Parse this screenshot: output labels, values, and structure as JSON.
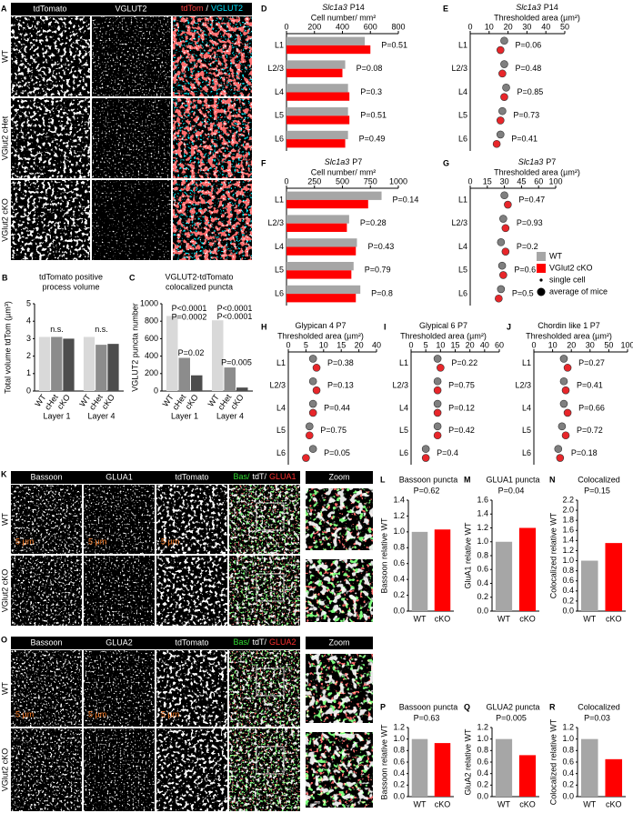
{
  "colors": {
    "wt": "#a6a6a6",
    "cko": "#ff0000",
    "wt_dot": "#7f7f7f",
    "cko_dot": "#e8262a"
  },
  "panel_a": {
    "letter": "A",
    "columns": [
      "tdTomato",
      "VGLUT2"
    ],
    "merge": [
      {
        "text": "tdTom",
        "color": "#ff4040"
      },
      {
        "text": "/",
        "color": "#ffffff"
      },
      {
        "text": "VGLUT2",
        "color": "#00e5ff"
      }
    ],
    "rows": [
      "WT",
      "VGlut2 cHet",
      "VGlut2 cKO"
    ]
  },
  "panel_b": {
    "letter": "B",
    "title": [
      "tdTomato positive",
      "process volume"
    ],
    "ylabel": "Total volume tdTom (µm³)",
    "categories": [
      "WT",
      "cHet",
      "cKO"
    ],
    "colors": [
      "#d9d9d9",
      "#8c8c8c",
      "#4d4d4d"
    ],
    "groups": [
      {
        "name": "Layer 1",
        "values": [
          3.1,
          3.1,
          3.0
        ]
      },
      {
        "name": "Layer 4",
        "values": [
          3.1,
          2.65,
          2.7
        ]
      }
    ],
    "ylim": [
      0,
      5
    ],
    "yticks": [
      0,
      1,
      2,
      3,
      4,
      5
    ],
    "annotations": [
      "n.s.",
      "n.s."
    ]
  },
  "panel_c": {
    "letter": "C",
    "title": [
      "VGLUT2-tdTomato",
      "colocalized puncta"
    ],
    "ylabel": "VGLUT2 puncta number",
    "categories": [
      "WT",
      "cHet",
      "cKO"
    ],
    "colors": [
      "#d9d9d9",
      "#8c8c8c",
      "#4d4d4d"
    ],
    "groups": [
      {
        "name": "Layer 1",
        "values": [
          860,
          380,
          180
        ]
      },
      {
        "name": "Layer 4",
        "values": [
          810,
          270,
          40
        ]
      }
    ],
    "ylim": [
      0,
      1000
    ],
    "yticks": [
      0,
      200,
      400,
      600,
      800,
      1000
    ],
    "annotations": [
      "P<0.0001",
      "P=0.0002",
      "P=0.02",
      "P<0.0001",
      "P<0.0001",
      "P=0.005"
    ]
  },
  "panel_d": {
    "letter": "D",
    "title_italic": "Slc1a3",
    "title": "P14",
    "subtitle": "Cell number/ mm²",
    "categories": [
      "L1",
      "L2/3",
      "L4",
      "L5",
      "L6"
    ],
    "wt": [
      560,
      420,
      440,
      440,
      440
    ],
    "cko": [
      600,
      400,
      450,
      450,
      420
    ],
    "xlim": [
      0,
      800
    ],
    "xticks": [
      0,
      200,
      400,
      600,
      800
    ],
    "p_labels": [
      "P=0.51",
      "P=0.08",
      "P=0.3",
      "P=0.51",
      "P=0.49"
    ]
  },
  "panel_e": {
    "letter": "E",
    "title_italic": "Slc1a3",
    "title": "P14",
    "subtitle": "Thresholded area (µm²)",
    "categories": [
      "L1",
      "L2/3",
      "L4",
      "L5",
      "L6"
    ],
    "wt": [
      18,
      18,
      19,
      17,
      16
    ],
    "cko": [
      16,
      17,
      18,
      16,
      14
    ],
    "xticks": [
      0,
      10,
      20,
      30,
      40,
      50
    ],
    "p_labels": [
      "P=0.06",
      "P=0.48",
      "P=0.85",
      "P=0.73",
      "P=0.41"
    ]
  },
  "panel_f": {
    "letter": "F",
    "title_italic": "Slc1a3",
    "title": "P7",
    "subtitle": "Cell number/ mm²",
    "categories": [
      "L1",
      "L2/3",
      "L4",
      "L5",
      "L6"
    ],
    "wt": [
      850,
      560,
      630,
      600,
      660
    ],
    "cko": [
      730,
      540,
      620,
      580,
      620
    ],
    "xlim": [
      0,
      1000
    ],
    "xticks": [
      0,
      250,
      500,
      750,
      1000
    ],
    "p_labels": [
      "P=0.14",
      "P=0.28",
      "P=0.43",
      "P=0.79",
      "P=0.8"
    ]
  },
  "panel_g": {
    "letter": "G",
    "title_italic": "Slc1a3",
    "title": "P7",
    "subtitle": "Thresholded area (µm²)",
    "categories": [
      "L1",
      "L2/3",
      "L4",
      "L5",
      "L6"
    ],
    "wt": [
      30,
      29,
      27,
      28,
      27
    ],
    "cko": [
      33,
      31,
      31,
      29,
      25
    ],
    "xticks": [
      0,
      15,
      30,
      45,
      60,
      100
    ],
    "p_labels": [
      "P=0.47",
      "P=0.93",
      "P=0.2",
      "P=0.6",
      "P=0.5"
    ]
  },
  "legend": {
    "items": [
      {
        "label": "WT",
        "kind": "square",
        "color": "#a6a6a6"
      },
      {
        "label": "VGlut2 cKO",
        "kind": "square",
        "color": "#ff0000"
      },
      {
        "label": "single cell",
        "kind": "small-dot",
        "color": "#000000"
      },
      {
        "label": "average of mice",
        "kind": "big-dot",
        "color": "#000000"
      }
    ]
  },
  "panel_h": {
    "letter": "H",
    "title": "Glypican 4 P7",
    "subtitle": "Thresholded area (µm²)",
    "categories": [
      "L1",
      "L2/3",
      "L4",
      "L5",
      "L6"
    ],
    "wt": [
      7,
      7,
      7,
      6,
      7
    ],
    "cko": [
      8,
      8,
      7,
      6,
      5
    ],
    "xticks": [
      0,
      5,
      10,
      15,
      20,
      40
    ],
    "p_labels": [
      "P=0.38",
      "P=0.13",
      "P=0.44",
      "P=0.75",
      "P=0.05"
    ]
  },
  "panel_i": {
    "letter": "I",
    "title": "Glypical 6 P7",
    "subtitle": "Thresholded area (µm²)",
    "categories": [
      "L1",
      "L2/3",
      "L4",
      "L5",
      "L6"
    ],
    "wt": [
      9,
      9,
      9,
      9,
      5
    ],
    "cko": [
      10,
      9,
      9,
      9,
      5
    ],
    "xticks": [
      0,
      5,
      10,
      15,
      20,
      40,
      60
    ],
    "p_labels": [
      "P=0.22",
      "P=0.75",
      "P=0.12",
      "P=0.42",
      "P=0.4"
    ]
  },
  "panel_j": {
    "letter": "J",
    "title": "Chordin like 1 P7",
    "subtitle": "Thresholded area (µm²)",
    "categories": [
      "L1",
      "L2/3",
      "L4",
      "L5",
      "L6"
    ],
    "wt": [
      16,
      16,
      16,
      15,
      13
    ],
    "cko": [
      18,
      17,
      18,
      17,
      14
    ],
    "xticks": [
      0,
      10,
      20,
      30,
      50,
      100
    ],
    "p_labels": [
      "P=0.27",
      "P=0.41",
      "P=0.66",
      "P=0.72",
      "P=0.18"
    ]
  },
  "panel_k": {
    "letter": "K",
    "columns": [
      "Bassoon",
      "GLUA1",
      "tdTomato"
    ],
    "merge": [
      {
        "text": "Bas/",
        "color": "#33dd33"
      },
      {
        "text": "tdT/",
        "color": "#ffffff"
      },
      {
        "text": "GLUA1",
        "color": "#ff3030"
      }
    ],
    "zoom": "Zoom",
    "rows": [
      "WT",
      "VGlut2 cKO"
    ],
    "scale": "5 µm"
  },
  "panel_l": {
    "letter": "L",
    "title": "Bassoon puncta",
    "p_label": "P=0.62",
    "ylabel": "Bassoon relative WT",
    "categories": [
      "WT",
      "cKO"
    ],
    "values": [
      1,
      1.03
    ],
    "ylim": [
      0,
      1.4
    ],
    "yticks": [
      {
        "value": 0,
        "label": "0.0"
      },
      0.2,
      0.4,
      0.6,
      0.8,
      {
        "value": 1,
        "label": "1.0"
      },
      1.2,
      1.4
    ]
  },
  "panel_m": {
    "letter": "M",
    "title": "GLUA1 puncta",
    "p_label": "P=0.04",
    "ylabel": "GluA1 relative WT",
    "categories": [
      "WT",
      "cKO"
    ],
    "values": [
      1,
      1.2
    ],
    "ylim": [
      0,
      1.6
    ],
    "yticks": [
      {
        "value": 0,
        "label": "0.0"
      },
      0.2,
      0.4,
      0.6,
      0.8,
      {
        "value": 1,
        "label": "1.0"
      },
      1.2,
      1.4,
      1.6
    ]
  },
  "panel_n": {
    "letter": "N",
    "title": "Colocalized",
    "p_label": "P=0.15",
    "ylabel": "Colocalized relative WT",
    "categories": [
      "WT",
      "cKO"
    ],
    "values": [
      1,
      1.35
    ],
    "ylim": [
      0,
      2.2
    ],
    "yticks": [
      {
        "value": 0,
        "label": "0.0"
      },
      0.2,
      0.4,
      0.6,
      0.8,
      {
        "value": 1,
        "label": "1.0"
      },
      1.2,
      1.4,
      1.6,
      1.8,
      {
        "value": 2,
        "label": "2.0"
      },
      2.2
    ]
  },
  "panel_o": {
    "letter": "O",
    "columns": [
      "Bassoon",
      "GLUA2",
      "tdTomato"
    ],
    "merge": [
      {
        "text": "Bas/",
        "color": "#33dd33"
      },
      {
        "text": "tdT/",
        "color": "#ffffff"
      },
      {
        "text": "GLUA2",
        "color": "#ff3030"
      }
    ],
    "zoom": "Zoom",
    "rows": [
      "WT",
      "VGlut2 cKO"
    ],
    "scale": "5 µm"
  },
  "panel_p": {
    "letter": "P",
    "title": "Bassoon puncta",
    "p_label": "P=0.63",
    "ylabel": "Bassoon relative WT",
    "categories": [
      "WT",
      "cKO"
    ],
    "values": [
      1,
      0.93
    ],
    "ylim": [
      0,
      1.2
    ],
    "yticks": [
      {
        "value": 0,
        "label": "0.0"
      },
      0.2,
      0.4,
      0.6,
      0.8,
      {
        "value": 1,
        "label": "1.0"
      },
      1.2
    ]
  },
  "panel_q": {
    "letter": "Q",
    "title": "GLUA2 puncta",
    "p_label": "P=0.005",
    "ylabel": "GluA2 relative WT",
    "categories": [
      "WT",
      "cKO"
    ],
    "values": [
      1,
      0.72
    ],
    "ylim": [
      0,
      1.2
    ],
    "yticks": [
      {
        "value": 0,
        "label": "0.0"
      },
      0.2,
      0.4,
      0.6,
      0.8,
      {
        "value": 1,
        "label": "1.0"
      },
      1.2
    ]
  },
  "panel_r": {
    "letter": "R",
    "title": "Colocalized",
    "p_label": "P=0.03",
    "ylabel": "Colocalized relative WT",
    "categories": [
      "WT",
      "cKO"
    ],
    "values": [
      1,
      0.65
    ],
    "ylim": [
      0,
      1.2
    ],
    "yticks": [
      {
        "value": 0,
        "label": "0.0"
      },
      0.2,
      0.4,
      0.6,
      0.8,
      {
        "value": 1,
        "label": "1.0"
      },
      1.2
    ]
  }
}
